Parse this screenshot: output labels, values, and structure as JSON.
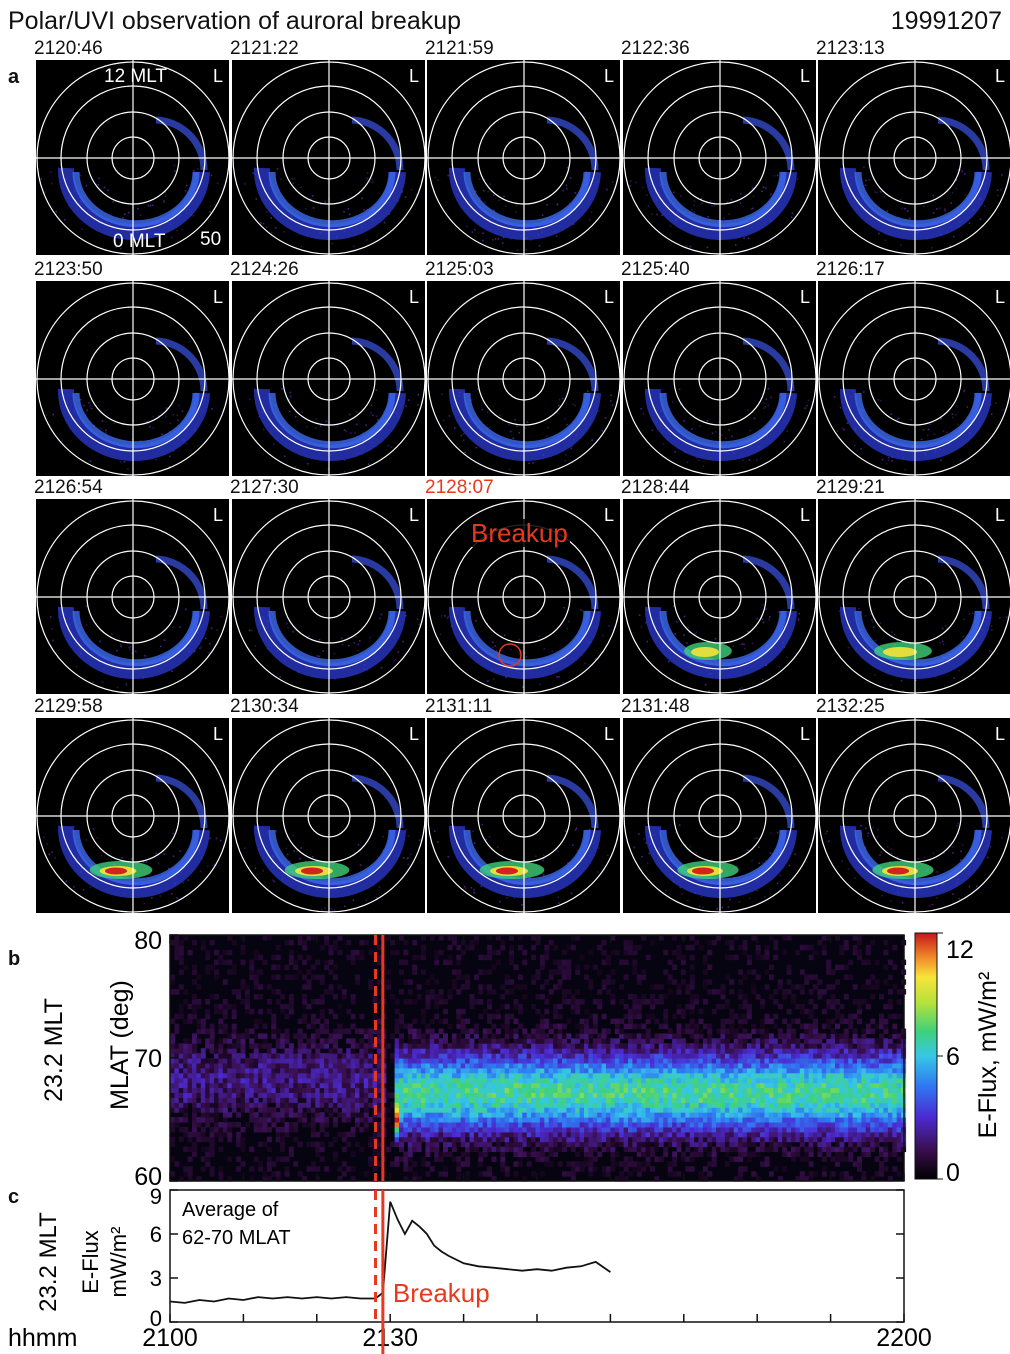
{
  "header": {
    "title": "Polar/UVI observation of auroral breakup",
    "date": "19991207"
  },
  "panel_labels": {
    "a": "a",
    "b": "b",
    "c": "c"
  },
  "panel_a": {
    "frame_times": [
      "2120:46",
      "2121:22",
      "2121:59",
      "2122:36",
      "2123:13",
      "2123:50",
      "2124:26",
      "2125:03",
      "2125:40",
      "2126:17",
      "2126:54",
      "2127:30",
      "2128:07",
      "2128:44",
      "2129:21",
      "2129:58",
      "2130:34",
      "2131:11",
      "2131:48",
      "2132:25"
    ],
    "breakup_frame_index": 12,
    "breakup_label": "Breakup",
    "frame_tag": "L",
    "label_noon": "12 MLT",
    "label_midnight": "0 MLT",
    "label_lat": "50",
    "frame_brightness": [
      0.35,
      0.35,
      0.38,
      0.38,
      0.38,
      0.35,
      0.35,
      0.38,
      0.38,
      0.42,
      0.42,
      0.5,
      0.55,
      0.7,
      0.85,
      0.92,
      0.95,
      0.95,
      0.9,
      0.9
    ],
    "colors": {
      "breakup": "#e8391f",
      "grid": "#ffffff"
    }
  },
  "chart_data": [
    {
      "type": "heatmap",
      "panel": "b",
      "ylabel_outer": "23.2 MLT",
      "ylabel": "MLAT (deg)",
      "xlim": [
        2100,
        2200
      ],
      "ylim": [
        60,
        80
      ],
      "y_ticks": [
        "60",
        "70",
        "80"
      ],
      "colorbar": {
        "label": "E-Flux, mW/m²",
        "range": [
          0,
          12
        ],
        "ticks": [
          "0",
          "6",
          "12"
        ]
      },
      "features": [
        {
          "t_start": 2100,
          "t_end": 2129,
          "mlat_center": 68,
          "flux": 2
        },
        {
          "t_start": 2130,
          "t_end": 2200,
          "mlat_center": 67,
          "flux": 7
        },
        {
          "t_start": 2130,
          "t_end": 2131,
          "mlat_center": 65,
          "flux": 12
        }
      ],
      "dashed_line_x": 2128,
      "breakup_line_x": 2129
    },
    {
      "type": "line",
      "panel": "c",
      "ylabel_outer": "23.2 MLT",
      "ylabel_line1": "E-Flux",
      "ylabel_line2": "mW/m²",
      "annotation_line1": "Average of",
      "annotation_line2": "62-70 MLAT",
      "breakup_label": "Breakup",
      "x_axis_prefix": "hhmm",
      "xlim": [
        2100,
        2200
      ],
      "ylim": [
        0,
        9
      ],
      "x_ticks": [
        "2100",
        "2130",
        "2200"
      ],
      "y_ticks": [
        "0",
        "3",
        "6",
        "9"
      ],
      "x": [
        2100,
        2102,
        2104,
        2106,
        2108,
        2110,
        2112,
        2114,
        2116,
        2118,
        2120,
        2122,
        2124,
        2126,
        2128,
        2129,
        2130,
        2131,
        2132,
        2133,
        2134,
        2135,
        2136,
        2137,
        2138,
        2140,
        2142,
        2144,
        2146,
        2148,
        2150,
        2152,
        2154,
        2156,
        2158,
        2160
      ],
      "values": [
        1.4,
        1.3,
        1.5,
        1.4,
        1.6,
        1.5,
        1.7,
        1.6,
        1.7,
        1.6,
        1.7,
        1.6,
        1.7,
        1.6,
        1.6,
        2.0,
        8.2,
        7.0,
        6.0,
        6.9,
        6.5,
        6.0,
        5.2,
        4.8,
        4.5,
        4.0,
        3.8,
        3.7,
        3.6,
        3.5,
        3.6,
        3.5,
        3.7,
        3.8,
        4.1,
        3.4
      ],
      "dashed_line_x": 2128,
      "breakup_line_x": 2129,
      "colors": {
        "line": "#111111",
        "breakup": "#e8391f"
      }
    }
  ]
}
